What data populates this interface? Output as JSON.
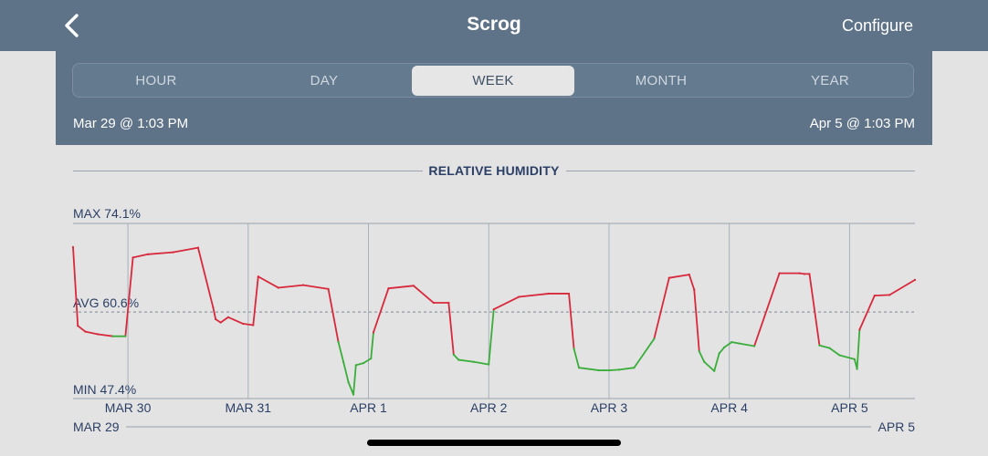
{
  "nav": {
    "title": "Scrog",
    "configure_label": "Configure",
    "back_icon": "chevron-left-icon"
  },
  "tabs": [
    {
      "label": "HOUR",
      "active": false
    },
    {
      "label": "DAY",
      "active": false
    },
    {
      "label": "WEEK",
      "active": true
    },
    {
      "label": "MONTH",
      "active": false
    },
    {
      "label": "YEAR",
      "active": false
    }
  ],
  "range": {
    "start": "Mar 29 @ 1:03 PM",
    "end": "Apr 5 @ 1:03 PM"
  },
  "colors": {
    "nav_bg": "#5e7288",
    "above_avg": "#d8293c",
    "below_avg": "#3aad3a",
    "text_dark": "#2b3f66"
  },
  "chart_data": {
    "type": "line",
    "title": "RELATIVE HUMIDITY",
    "unit": "%",
    "max_label": "MAX 74.1%",
    "avg_label": "AVG 60.6%",
    "min_label": "MIN 47.4%",
    "max": 74.1,
    "avg": 60.6,
    "min": 47.4,
    "ylim": [
      47.4,
      74.1
    ],
    "x_start": "2024-03-29T13:03",
    "x_end": "2024-04-05T13:03",
    "x_start_label": "MAR 29",
    "x_end_label": "APR 5",
    "day_ticks": [
      {
        "label": "MAR 30",
        "x": "2024-03-30T00:00"
      },
      {
        "label": "MAR 31",
        "x": "2024-03-31T00:00"
      },
      {
        "label": "APR 1",
        "x": "2024-04-01T00:00"
      },
      {
        "label": "APR 2",
        "x": "2024-04-02T00:00"
      },
      {
        "label": "APR 3",
        "x": "2024-04-03T00:00"
      },
      {
        "label": "APR 4",
        "x": "2024-04-04T00:00"
      },
      {
        "label": "APR 5",
        "x": "2024-04-05T00:00"
      }
    ],
    "grid": true,
    "series": [
      {
        "x": [
          "2024-03-29T13:03",
          "2024-03-29T14:00",
          "2024-03-29T15:30",
          "2024-03-29T18:00",
          "2024-03-29T21:00",
          "2024-03-29T23:30",
          "2024-03-30T01:00",
          "2024-03-30T04:00",
          "2024-03-30T09:00",
          "2024-03-30T14:00",
          "2024-03-30T17:00",
          "2024-03-30T17:30",
          "2024-03-30T18:30",
          "2024-03-30T20:00",
          "2024-03-30T23:00",
          "2024-03-31T01:00",
          "2024-03-31T02:00",
          "2024-03-31T06:00",
          "2024-03-31T11:00",
          "2024-03-31T16:00",
          "2024-03-31T18:00",
          "2024-03-31T19:00",
          "2024-03-31T20:00",
          "2024-03-31T21:00",
          "2024-03-31T21:30",
          "2024-03-31T23:00",
          "2024-04-01T00:30",
          "2024-04-01T01:00",
          "2024-04-01T04:00",
          "2024-04-01T09:00",
          "2024-04-01T13:00",
          "2024-04-01T16:00",
          "2024-04-01T17:00",
          "2024-04-01T18:00",
          "2024-04-01T21:00",
          "2024-04-02T00:00",
          "2024-04-02T01:00",
          "2024-04-02T06:00",
          "2024-04-02T12:00",
          "2024-04-02T16:00",
          "2024-04-02T17:00",
          "2024-04-02T18:00",
          "2024-04-02T22:00",
          "2024-04-03T00:00",
          "2024-04-03T02:00",
          "2024-04-03T05:00",
          "2024-04-03T09:00",
          "2024-04-03T12:00",
          "2024-04-03T16:00",
          "2024-04-03T17:00",
          "2024-04-03T18:00",
          "2024-04-03T19:00",
          "2024-04-03T21:00",
          "2024-04-03T22:00",
          "2024-04-03T23:00",
          "2024-04-04T00:30",
          "2024-04-04T02:00",
          "2024-04-04T05:00",
          "2024-04-04T10:00",
          "2024-04-04T14:00",
          "2024-04-04T15:00",
          "2024-04-04T16:00",
          "2024-04-04T18:00",
          "2024-04-04T20:00",
          "2024-04-04T22:00",
          "2024-04-05T01:00",
          "2024-04-05T01:30",
          "2024-04-05T02:00",
          "2024-04-05T05:00",
          "2024-04-05T08:00",
          "2024-04-05T13:03"
        ],
        "values": [
          70.5,
          58.5,
          57.6,
          57.2,
          56.9,
          56.9,
          68.9,
          69.4,
          69.7,
          70.4,
          61.3,
          59.5,
          59.0,
          59.8,
          58.8,
          58.6,
          66.0,
          64.3,
          64.7,
          64.1,
          56.0,
          53.0,
          49.9,
          48.0,
          52.5,
          52.8,
          53.5,
          57.5,
          64.2,
          64.6,
          62.0,
          62.0,
          54.1,
          53.3,
          53.0,
          52.6,
          61.0,
          62.9,
          63.4,
          63.4,
          55.0,
          52.1,
          51.7,
          51.7,
          51.8,
          52.1,
          56.5,
          65.8,
          66.3,
          64.0,
          54.6,
          53.0,
          51.6,
          54.3,
          55.2,
          56.0,
          55.8,
          55.4,
          66.5,
          66.5,
          66.4,
          66.4,
          55.5,
          55.1,
          54.0,
          53.4,
          51.9,
          57.9,
          63.1,
          63.2,
          65.5
        ]
      }
    ]
  }
}
